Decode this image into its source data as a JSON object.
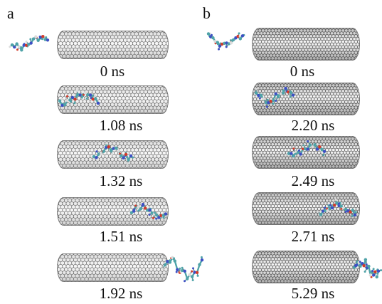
{
  "panels": [
    {
      "label": "a",
      "frames": [
        {
          "time": "0 ns"
        },
        {
          "time": "1.08 ns"
        },
        {
          "time": "1.32 ns"
        },
        {
          "time": "1.51 ns"
        },
        {
          "time": "1.92 ns"
        }
      ]
    },
    {
      "label": "b",
      "frames": [
        {
          "time": "0 ns"
        },
        {
          "time": "2.20 ns"
        },
        {
          "time": "2.49 ns"
        },
        {
          "time": "2.71 ns"
        },
        {
          "time": "5.29 ns"
        }
      ]
    }
  ],
  "colors": {
    "tube_stroke": "#5a5a5a",
    "tube_fill": "#e9e9e9",
    "molecule_carbon": "#4fa3a8",
    "molecule_nitrogen": "#3d4fc4",
    "molecule_oxygen": "#d23b2b",
    "molecule_hydrogen": "#dcdcdc"
  },
  "icons": {
    "nanotube": "carbon-nanotube-icon",
    "molecule": "peptide-molecule-icon"
  }
}
